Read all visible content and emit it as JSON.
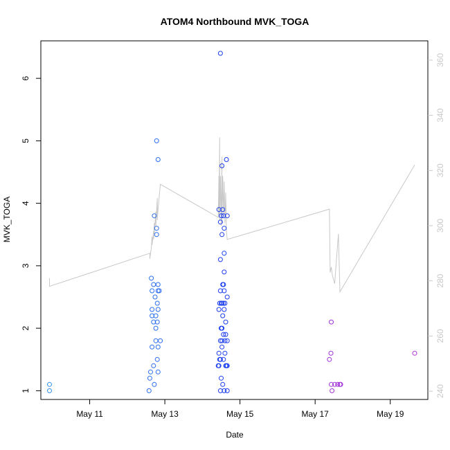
{
  "chart_data": {
    "type": "scatter",
    "title": "ATOM4 Northbound MVK_TOGA",
    "xlabel": "Date",
    "ylabel": "MVK_TOGA",
    "x_ticks": [
      "May 11",
      "May 13",
      "May 15",
      "May 17",
      "May 19"
    ],
    "x_tick_days": [
      11,
      13,
      15,
      17,
      19
    ],
    "xlim_days": [
      9.7,
      20.0
    ],
    "ylim": [
      0.86,
      6.6
    ],
    "y_ticks": [
      1,
      2,
      3,
      4,
      5,
      6
    ],
    "y2lim": [
      237.0,
      367.0
    ],
    "y2_ticks": [
      240,
      260,
      280,
      300,
      320,
      340,
      360
    ],
    "grid": false,
    "colors": {
      "line": "#c8c8c8",
      "y2_axis": "#c8c8c8",
      "axis": "#000000",
      "early": "#2e8ff0",
      "mid": "#1a3cf0",
      "late": "#b030d8"
    },
    "series": [
      {
        "type": "scatter",
        "axis": "left",
        "points": [
          [
            9.93,
            1.1
          ],
          [
            9.93,
            1.0
          ],
          [
            12.58,
            1.0
          ],
          [
            12.6,
            1.2
          ],
          [
            12.62,
            1.3
          ],
          [
            12.64,
            2.8
          ],
          [
            12.66,
            2.6
          ],
          [
            12.66,
            2.3
          ],
          [
            12.66,
            2.2
          ],
          [
            12.66,
            1.7
          ],
          [
            12.7,
            2.7
          ],
          [
            12.7,
            2.1
          ],
          [
            12.7,
            1.4
          ],
          [
            12.72,
            1.1
          ],
          [
            12.72,
            3.8
          ],
          [
            12.74,
            2.5
          ],
          [
            12.76,
            2.2
          ],
          [
            12.76,
            2.0
          ],
          [
            12.76,
            1.8
          ],
          [
            12.78,
            5.0
          ],
          [
            12.78,
            3.6
          ],
          [
            12.78,
            3.5
          ],
          [
            12.8,
            2.4
          ],
          [
            12.8,
            2.1
          ],
          [
            12.8,
            1.5
          ],
          [
            12.82,
            4.7
          ],
          [
            12.82,
            2.7
          ],
          [
            12.82,
            2.6
          ],
          [
            12.82,
            2.3
          ],
          [
            12.82,
            1.7
          ],
          [
            12.82,
            1.3
          ],
          [
            12.85,
            2.6
          ],
          [
            12.88,
            1.8
          ],
          [
            14.42,
            1.4
          ],
          [
            14.44,
            3.9
          ],
          [
            14.44,
            2.3
          ],
          [
            14.44,
            1.6
          ],
          [
            14.44,
            1.4
          ],
          [
            14.46,
            2.4
          ],
          [
            14.46,
            1.5
          ],
          [
            14.48,
            6.4
          ],
          [
            14.48,
            3.7
          ],
          [
            14.48,
            3.1
          ],
          [
            14.48,
            2.6
          ],
          [
            14.48,
            1.8
          ],
          [
            14.48,
            1.5
          ],
          [
            14.48,
            1.0
          ],
          [
            14.5,
            3.8
          ],
          [
            14.5,
            2.4
          ],
          [
            14.5,
            2.0
          ],
          [
            14.5,
            1.2
          ],
          [
            14.52,
            4.6
          ],
          [
            14.52,
            3.5
          ],
          [
            14.52,
            2.4
          ],
          [
            14.52,
            2.0
          ],
          [
            14.52,
            1.8
          ],
          [
            14.52,
            1.7
          ],
          [
            14.54,
            3.9
          ],
          [
            14.54,
            2.7
          ],
          [
            14.54,
            2.2
          ],
          [
            14.54,
            1.1
          ],
          [
            14.56,
            3.8
          ],
          [
            14.56,
            2.7
          ],
          [
            14.56,
            2.4
          ],
          [
            14.56,
            1.9
          ],
          [
            14.56,
            1.5
          ],
          [
            14.58,
            3.6
          ],
          [
            14.58,
            3.2
          ],
          [
            14.58,
            2.9
          ],
          [
            14.58,
            2.3
          ],
          [
            14.58,
            2.6
          ],
          [
            14.58,
            1.0
          ],
          [
            14.6,
            2.4
          ],
          [
            14.6,
            1.8
          ],
          [
            14.6,
            1.6
          ],
          [
            14.62,
            2.1
          ],
          [
            14.62,
            1.9
          ],
          [
            14.62,
            1.4
          ],
          [
            14.64,
            4.7
          ],
          [
            14.64,
            1.4
          ],
          [
            14.66,
            3.8
          ],
          [
            14.66,
            2.5
          ],
          [
            14.66,
            1.8
          ],
          [
            14.66,
            1.4
          ],
          [
            14.66,
            1.0
          ],
          [
            17.38,
            1.5
          ],
          [
            17.42,
            1.6
          ],
          [
            17.43,
            2.1
          ],
          [
            17.43,
            1.1
          ],
          [
            17.45,
            1.0
          ],
          [
            17.52,
            1.1
          ],
          [
            17.6,
            1.1
          ],
          [
            17.66,
            1.1
          ],
          [
            17.68,
            1.1
          ],
          [
            19.65,
            1.6
          ]
        ]
      },
      {
        "type": "line",
        "axis": "right",
        "points": [
          [
            9.93,
            281.0
          ],
          [
            9.93,
            278.0
          ],
          [
            12.6,
            290.0
          ],
          [
            12.6,
            288.0
          ],
          [
            12.64,
            292.0
          ],
          [
            12.66,
            296.0
          ],
          [
            12.66,
            293.0
          ],
          [
            12.7,
            298.0
          ],
          [
            12.7,
            295.0
          ],
          [
            12.72,
            301.0
          ],
          [
            12.72,
            297.0
          ],
          [
            12.76,
            305.0
          ],
          [
            12.76,
            300.0
          ],
          [
            12.8,
            310.0
          ],
          [
            12.8,
            302.0
          ],
          [
            12.82,
            306.0
          ],
          [
            12.84,
            309.0
          ],
          [
            12.88,
            315.0
          ],
          [
            14.42,
            303.0
          ],
          [
            14.44,
            318.0
          ],
          [
            14.44,
            304.0
          ],
          [
            14.46,
            332.0
          ],
          [
            14.46,
            302.0
          ],
          [
            14.48,
            318.0
          ],
          [
            14.5,
            300.0
          ],
          [
            14.52,
            325.0
          ],
          [
            14.52,
            301.0
          ],
          [
            14.54,
            318.0
          ],
          [
            14.56,
            303.0
          ],
          [
            14.58,
            316.0
          ],
          [
            14.6,
            301.0
          ],
          [
            14.62,
            312.0
          ],
          [
            14.64,
            298.0
          ],
          [
            14.66,
            295.0
          ],
          [
            17.38,
            306.0
          ],
          [
            17.4,
            283.0
          ],
          [
            17.43,
            285.0
          ],
          [
            17.46,
            282.0
          ],
          [
            17.52,
            279.0
          ],
          [
            17.62,
            297.0
          ],
          [
            17.66,
            276.0
          ],
          [
            19.65,
            322.0
          ]
        ]
      }
    ]
  }
}
